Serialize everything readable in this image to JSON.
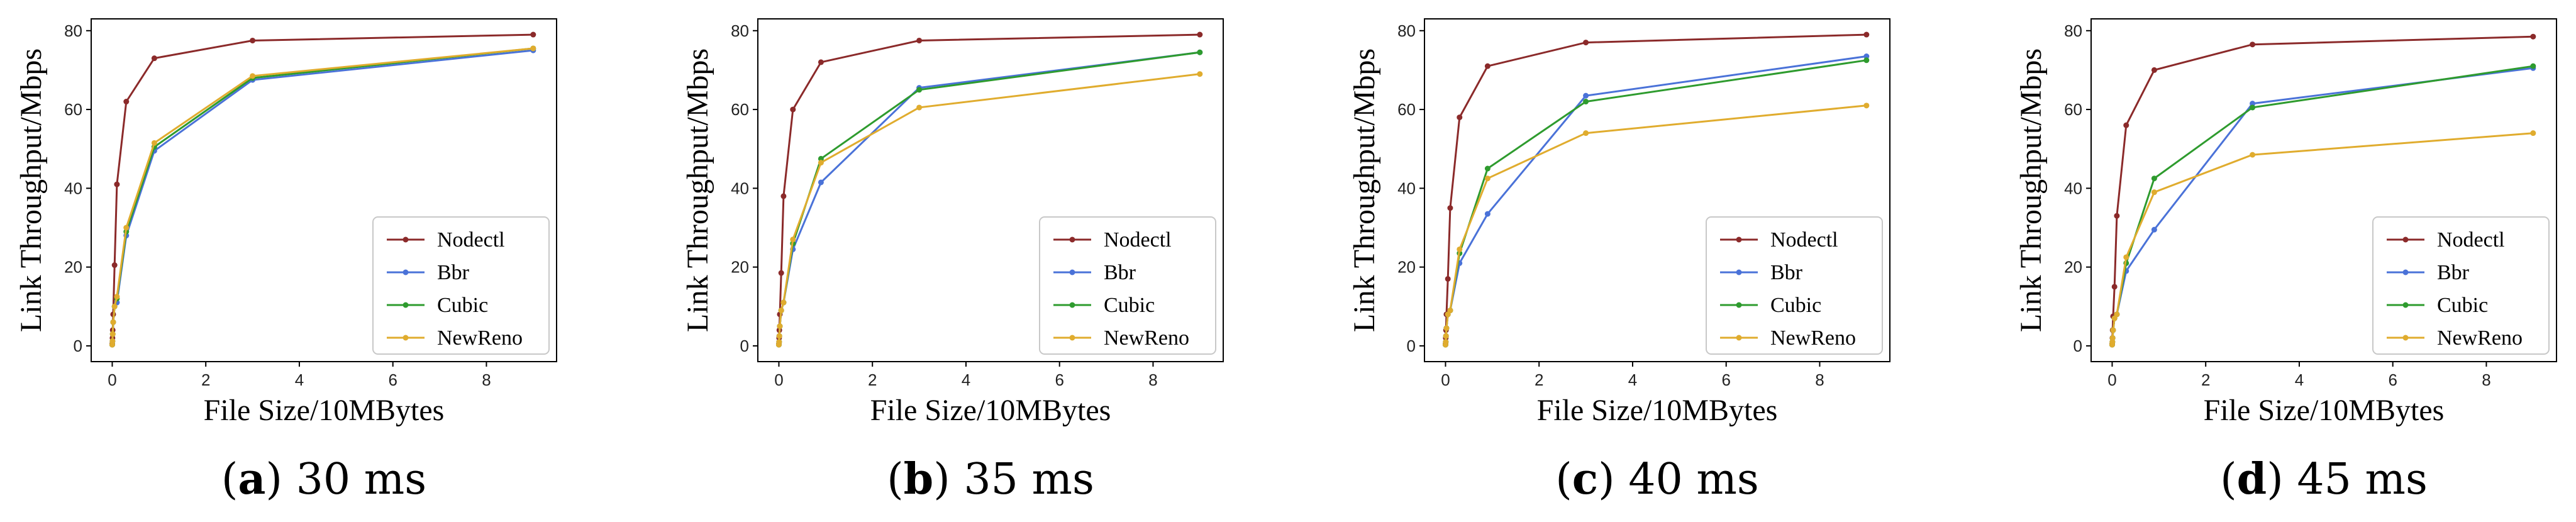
{
  "chart_data": [
    {
      "type": "line",
      "caption": {
        "letter": "a",
        "text": "30 ms"
      },
      "xlabel": "File Size/10MBytes",
      "ylabel": "Link Throughput/Mbps",
      "xlim": [
        -0.45,
        9.5
      ],
      "ylim": [
        -4,
        83
      ],
      "xticks": [
        0,
        2,
        4,
        6,
        8
      ],
      "yticks": [
        0,
        20,
        40,
        60,
        80
      ],
      "legend_position": "lower-right",
      "x": [
        0,
        0.005,
        0.01,
        0.02,
        0.05,
        0.1,
        0.3,
        0.9,
        3,
        9
      ],
      "series": [
        {
          "name": "Nodectl",
          "color": "#8b2a2a",
          "values": [
            0.5,
            2,
            4,
            8,
            20.5,
            41,
            62,
            73,
            77.5,
            79
          ]
        },
        {
          "name": "Bbr",
          "color": "#4a72d8",
          "values": [
            0.3,
            1.2,
            3,
            6,
            10,
            11,
            28,
            49.5,
            67.5,
            75
          ]
        },
        {
          "name": "Cubic",
          "color": "#2e9b2e",
          "values": [
            0.3,
            1.2,
            3,
            6,
            10,
            12,
            29,
            50.5,
            68,
            75.5
          ]
        },
        {
          "name": "NewReno",
          "color": "#e0ac2e",
          "values": [
            0.3,
            1.2,
            3,
            6,
            10,
            12.5,
            30,
            51.5,
            68.5,
            75.5
          ]
        }
      ]
    },
    {
      "type": "line",
      "caption": {
        "letter": "b",
        "text": "35 ms"
      },
      "xlabel": "File Size/10MBytes",
      "ylabel": "Link Throughput/Mbps",
      "xlim": [
        -0.45,
        9.5
      ],
      "ylim": [
        -4,
        83
      ],
      "xticks": [
        0,
        2,
        4,
        6,
        8
      ],
      "yticks": [
        0,
        20,
        40,
        60,
        80
      ],
      "legend_position": "lower-right",
      "x": [
        0,
        0.005,
        0.01,
        0.02,
        0.05,
        0.1,
        0.3,
        0.9,
        3,
        9
      ],
      "series": [
        {
          "name": "Nodectl",
          "color": "#8b2a2a",
          "values": [
            0.5,
            2,
            4,
            8,
            18.5,
            38,
            60,
            72,
            77.5,
            79
          ]
        },
        {
          "name": "Bbr",
          "color": "#4a72d8",
          "values": [
            0.3,
            1,
            2.5,
            5,
            9,
            11,
            24.5,
            41.5,
            65.5,
            74.5
          ]
        },
        {
          "name": "Cubic",
          "color": "#2e9b2e",
          "values": [
            0.3,
            1,
            2.5,
            5,
            9,
            11,
            26,
            47.5,
            65,
            74.5
          ]
        },
        {
          "name": "NewReno",
          "color": "#e0ac2e",
          "values": [
            0.3,
            1,
            2.5,
            5,
            9,
            11,
            27,
            46.5,
            60.5,
            69
          ]
        }
      ]
    },
    {
      "type": "line",
      "caption": {
        "letter": "c",
        "text": "40 ms"
      },
      "xlabel": "File Size/10MBytes",
      "ylabel": "Link Throughput/Mbps",
      "xlim": [
        -0.45,
        9.5
      ],
      "ylim": [
        -4,
        83
      ],
      "xticks": [
        0,
        2,
        4,
        6,
        8
      ],
      "yticks": [
        0,
        20,
        40,
        60,
        80
      ],
      "legend_position": "lower-right",
      "x": [
        0,
        0.005,
        0.01,
        0.02,
        0.05,
        0.1,
        0.3,
        0.9,
        3,
        9
      ],
      "series": [
        {
          "name": "Nodectl",
          "color": "#8b2a2a",
          "values": [
            0.5,
            2,
            4,
            8,
            17,
            35,
            58,
            71,
            77,
            79
          ]
        },
        {
          "name": "Bbr",
          "color": "#4a72d8",
          "values": [
            0.3,
            1,
            2.5,
            4.5,
            8,
            9,
            21,
            33.5,
            63.5,
            73.5
          ]
        },
        {
          "name": "Cubic",
          "color": "#2e9b2e",
          "values": [
            0.3,
            1,
            2.5,
            4.5,
            8,
            9,
            23.5,
            45,
            62,
            72.5
          ]
        },
        {
          "name": "NewReno",
          "color": "#e0ac2e",
          "values": [
            0.3,
            1,
            2.5,
            4.5,
            8,
            9,
            24.5,
            42.5,
            54,
            61
          ]
        }
      ]
    },
    {
      "type": "line",
      "caption": {
        "letter": "d",
        "text": "45 ms"
      },
      "xlabel": "File Size/10MBytes",
      "ylabel": "Link Throughput/Mbps",
      "xlim": [
        -0.45,
        9.5
      ],
      "ylim": [
        -4,
        83
      ],
      "xticks": [
        0,
        2,
        4,
        6,
        8
      ],
      "yticks": [
        0,
        20,
        40,
        60,
        80
      ],
      "legend_position": "lower-right",
      "x": [
        0,
        0.005,
        0.01,
        0.02,
        0.05,
        0.1,
        0.3,
        0.9,
        3,
        9
      ],
      "series": [
        {
          "name": "Nodectl",
          "color": "#8b2a2a",
          "values": [
            0.5,
            2,
            4,
            7.5,
            15,
            33,
            56,
            70,
            76.5,
            78.5
          ]
        },
        {
          "name": "Bbr",
          "color": "#4a72d8",
          "values": [
            0.3,
            1,
            2,
            4,
            7,
            8,
            19,
            29.5,
            61.5,
            70.5
          ]
        },
        {
          "name": "Cubic",
          "color": "#2e9b2e",
          "values": [
            0.3,
            1,
            2,
            4,
            7,
            8,
            21,
            42.5,
            60.5,
            71
          ]
        },
        {
          "name": "NewReno",
          "color": "#e0ac2e",
          "values": [
            0.3,
            1,
            2,
            4,
            7,
            8,
            22.5,
            39,
            48.5,
            54
          ]
        }
      ]
    }
  ]
}
